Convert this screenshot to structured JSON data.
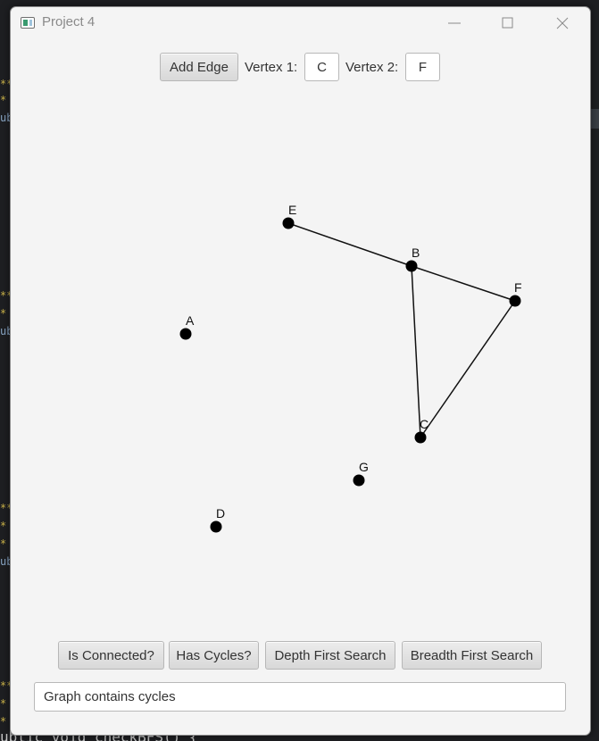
{
  "window": {
    "title": "Project 4"
  },
  "toolbar": {
    "add_edge_label": "Add Edge",
    "vertex1_label": "Vertex 1:",
    "vertex1_value": "C",
    "vertex2_label": "Vertex 2:",
    "vertex2_value": "F"
  },
  "graph": {
    "vertices": [
      "E",
      "B",
      "F",
      "A",
      "C",
      "G",
      "D"
    ],
    "edges": [
      [
        "E",
        "B"
      ],
      [
        "B",
        "F"
      ],
      [
        "B",
        "C"
      ],
      [
        "F",
        "C"
      ]
    ]
  },
  "actions": {
    "is_connected_label": "Is Connected?",
    "has_cycles_label": "Has Cycles?",
    "dfs_label": "Depth First Search",
    "bfs_label": "Breadth First Search"
  },
  "status": {
    "message": "Graph contains cycles"
  },
  "background": {
    "code_tail": "ublic void checkBFS() {",
    "snippet_1": "ub",
    "snippet_2": "ub",
    "snippet_3": "ub",
    "stars": "**",
    "star": "*"
  },
  "colors": {
    "window_bg": "#f4f4f4",
    "vertex": "#000000",
    "edge": "#111111"
  }
}
